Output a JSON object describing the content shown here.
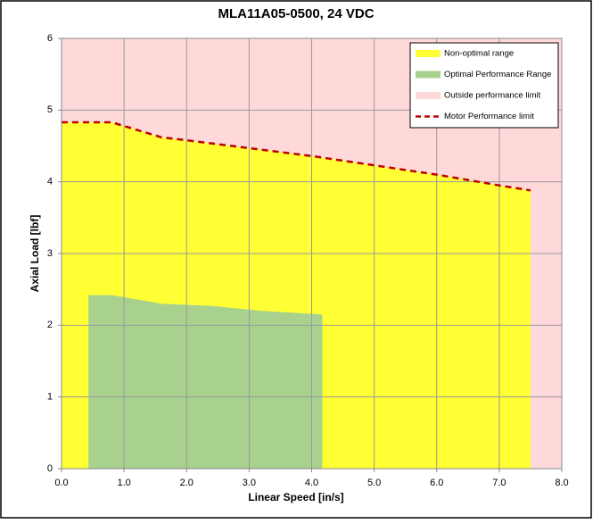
{
  "chart_data": {
    "type": "area",
    "title": "MLA11A05-0500, 24 VDC",
    "x_label": "Linear Speed [in/s]",
    "y_label": "Axial Load [lbf]",
    "xlim": [
      0,
      8
    ],
    "ylim": [
      0,
      6
    ],
    "xticks": [
      {
        "value": 0,
        "label": "0.0"
      },
      {
        "value": 1,
        "label": "1.0"
      },
      {
        "value": 2,
        "label": "2.0"
      },
      {
        "value": 3,
        "label": "3.0"
      },
      {
        "value": 4,
        "label": "4.0"
      },
      {
        "value": 5,
        "label": "5.0"
      },
      {
        "value": 6,
        "label": "6.0"
      },
      {
        "value": 7,
        "label": "7.0"
      },
      {
        "value": 8,
        "label": "8.0"
      }
    ],
    "yticks": [
      0,
      1,
      2,
      3,
      4,
      5,
      6
    ],
    "grid": true,
    "legend": "top-right",
    "series": [
      {
        "name": "Non-optimal range",
        "color": "#ffff33",
        "style": "area",
        "x": [
          0,
          0.8,
          1.6,
          2,
          3,
          4,
          5,
          6,
          7,
          7.5
        ],
        "values": [
          4.83,
          4.83,
          4.62,
          4.58,
          4.47,
          4.36,
          4.23,
          4.1,
          3.95,
          3.88
        ]
      },
      {
        "name": "Optimal Performance Range",
        "color": "#a9d18e",
        "style": "area",
        "x": [
          0.43,
          0.8,
          1.6,
          2.4,
          3.2,
          4.17
        ],
        "values": [
          2.42,
          2.42,
          2.3,
          2.27,
          2.2,
          2.15
        ]
      },
      {
        "name": "Outside performance limit",
        "color": "#ffd9d9",
        "style": "background",
        "x": [
          0,
          8
        ],
        "values": [
          6,
          6
        ]
      },
      {
        "name": "Motor Performance limit",
        "color": "#c00000",
        "style": "dashed-line",
        "x": [
          0,
          0.8,
          1.6,
          2,
          3,
          4,
          5,
          6,
          7,
          7.5
        ],
        "values": [
          4.83,
          4.83,
          4.62,
          4.58,
          4.47,
          4.36,
          4.23,
          4.1,
          3.95,
          3.88
        ]
      }
    ]
  }
}
